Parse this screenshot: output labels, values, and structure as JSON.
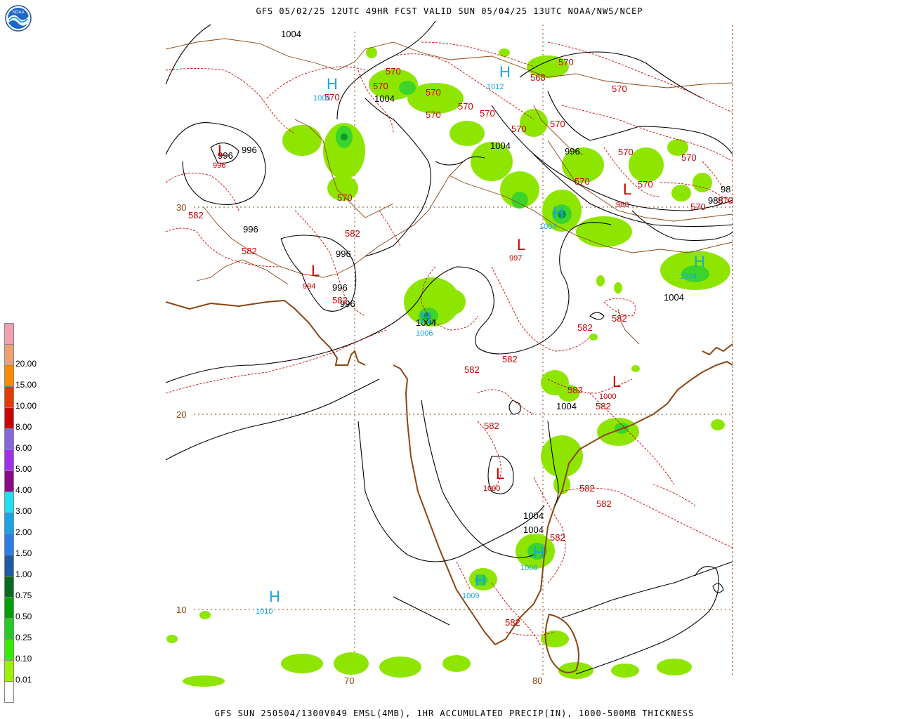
{
  "title": "GFS 05/02/25 12UTC 49HR FCST VALID SUN 05/04/25 13UTC NOAA/NWS/NCEP",
  "footer": "GFS SUN 250504/1300V049 EMSL(4MB), 1HR ACCUMULATED PRECIP(IN), 1000-500MB THICKNESS",
  "logo": {
    "icon": "noaa-logo",
    "text": "NOAA"
  },
  "colors": {
    "pressure": "#000000",
    "thickness": "#cc0000",
    "high": "#1aa3e8",
    "coast": "#8b4513",
    "precip_light": "#7fe000",
    "precip_mid": "#22cc22",
    "precip_heavy": "#0a9a30"
  },
  "legend": {
    "units": "IN",
    "bins": [
      {
        "label": "",
        "color": "#ffffff"
      },
      {
        "label": "0.01",
        "color": "#9cf200"
      },
      {
        "label": "0.10",
        "color": "#33ee00"
      },
      {
        "label": "0.25",
        "color": "#22cc22"
      },
      {
        "label": "0.50",
        "color": "#00a000"
      },
      {
        "label": "0.75",
        "color": "#0a6a20"
      },
      {
        "label": "1.00",
        "color": "#1e5aa8"
      },
      {
        "label": "1.50",
        "color": "#2b7de9"
      },
      {
        "label": "2.00",
        "color": "#1aa3e8"
      },
      {
        "label": "3.00",
        "color": "#1ee0f0"
      },
      {
        "label": "4.00",
        "color": "#8a0a8a"
      },
      {
        "label": "5.00",
        "color": "#a030ee"
      },
      {
        "label": "6.00",
        "color": "#8866dd"
      },
      {
        "label": "8.00",
        "color": "#cc0000"
      },
      {
        "label": "10.00",
        "color": "#e83800"
      },
      {
        "label": "15.00",
        "color": "#ff8a00"
      },
      {
        "label": "20.00",
        "color": "#f0a070"
      },
      {
        "label": "",
        "color": "#f0a0b0"
      }
    ]
  },
  "grid_labels": {
    "lat30": "30",
    "lat20": "20",
    "lat10": "10",
    "lon70": "70",
    "lon80": "80"
  },
  "pressure_labels": [
    "1004",
    "1004",
    "1004",
    "996",
    "996",
    "996",
    "996",
    "996",
    "996",
    "1004",
    "1004",
    "1004",
    "1004",
    "1004",
    "996",
    "98",
    "988"
  ],
  "thickness_labels": [
    "570",
    "570",
    "570",
    "570",
    "570",
    "570",
    "570",
    "570",
    "570",
    "570",
    "570",
    "570",
    "570",
    "570",
    "570",
    "570",
    "570",
    "570",
    "570",
    "570",
    "568",
    "582",
    "582",
    "582",
    "582",
    "582",
    "582",
    "582",
    "582",
    "582",
    "582",
    "582",
    "582",
    "582",
    "582",
    "582"
  ],
  "centers": {
    "highs": [
      {
        "letter": "H",
        "value": "1008"
      },
      {
        "letter": "H",
        "value": "1012"
      },
      {
        "letter": "H",
        "value": "1006"
      },
      {
        "letter": "H",
        "value": "1008"
      },
      {
        "letter": "H",
        "value": "1009"
      },
      {
        "letter": "H",
        "value": "1010"
      },
      {
        "letter": "H",
        "value": "1004"
      },
      {
        "letter": "H",
        "value": "1004"
      }
    ],
    "lows": [
      {
        "letter": "L",
        "value": "996"
      },
      {
        "letter": "L",
        "value": "994"
      },
      {
        "letter": "L",
        "value": "997"
      },
      {
        "letter": "L",
        "value": "988"
      },
      {
        "letter": "L",
        "value": "1000"
      },
      {
        "letter": "L",
        "value": "1000"
      }
    ]
  }
}
